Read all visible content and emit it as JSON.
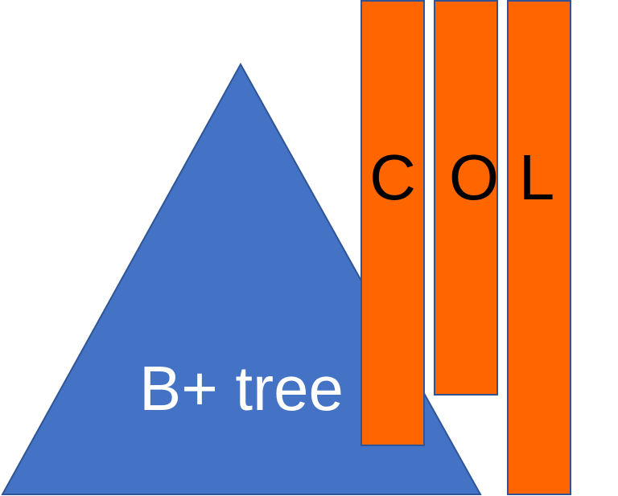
{
  "diagram": {
    "tree": {
      "label": "B+ tree",
      "fill": "#4472C4",
      "stroke": "#2F5597",
      "label_color": "#FFFFFF"
    },
    "columns": [
      {
        "letter": "C"
      },
      {
        "letter": "O"
      },
      {
        "letter": "L"
      }
    ],
    "column_fill": "#FF6600",
    "column_stroke": "#2F5597",
    "column_text_color": "#000000"
  }
}
